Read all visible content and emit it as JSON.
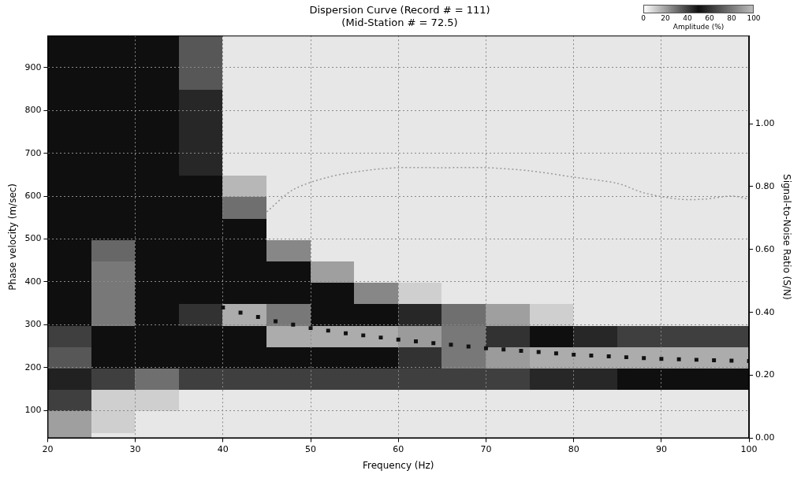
{
  "chart_data": {
    "type": "heatmap",
    "title": [
      "Dispersion Curve (Record # = 111)",
      "(Mid-Station # = 72.5)"
    ],
    "x_label": "Frequency (Hz)",
    "y_label": "Phase velocity (m/sec)",
    "y2_label": "Signal-to-Noise Ratio (S/N)",
    "xlim": [
      20,
      100
    ],
    "xticks": [
      20,
      30,
      40,
      50,
      60,
      70,
      80,
      90,
      100
    ],
    "ylim": [
      35,
      975
    ],
    "yticks": [
      100,
      200,
      300,
      400,
      500,
      600,
      700,
      800,
      900
    ],
    "y2lim": [
      0,
      1.28
    ],
    "y2ticks": [
      {
        "value": 0,
        "label": "0.00"
      },
      {
        "value": 0.2,
        "label": "0.20"
      },
      {
        "value": 0.4,
        "label": "0.40"
      },
      {
        "value": 0.6,
        "label": "0.60"
      },
      {
        "value": 0.8,
        "label": "0.80"
      },
      {
        "value": 1,
        "label": "1.00"
      }
    ],
    "grid": true,
    "heatmap": {
      "x_bins": [
        20,
        25,
        30,
        35,
        40,
        45,
        50,
        55,
        60,
        65,
        70,
        75,
        80,
        85,
        90,
        95,
        100
      ],
      "y_bins": [
        0,
        50,
        100,
        150,
        200,
        250,
        300,
        350,
        400,
        450,
        500,
        550,
        600,
        650,
        700,
        750,
        800,
        850,
        900,
        950,
        1000
      ],
      "cells": [
        [
          20,
          5,
          5,
          5,
          5,
          5,
          5,
          5,
          5,
          5,
          5,
          5,
          5,
          5,
          5,
          5
        ],
        [
          20,
          10,
          5,
          5,
          5,
          5,
          5,
          5,
          5,
          5,
          5,
          5,
          5,
          5,
          5,
          5
        ],
        [
          40,
          10,
          10,
          5,
          5,
          5,
          5,
          5,
          5,
          5,
          5,
          5,
          5,
          5,
          5,
          5
        ],
        [
          55,
          40,
          30,
          40,
          40,
          40,
          40,
          40,
          40,
          40,
          40,
          45,
          45,
          50,
          50,
          50
        ],
        [
          35,
          50,
          50,
          50,
          50,
          50,
          50,
          50,
          60,
          80,
          90,
          95,
          95,
          95,
          95,
          95
        ],
        [
          40,
          50,
          50,
          50,
          50,
          95,
          95,
          95,
          90,
          80,
          60,
          50,
          45,
          40,
          40,
          40
        ],
        [
          50,
          80,
          50,
          60,
          95,
          80,
          50,
          50,
          45,
          30,
          20,
          10,
          5,
          5,
          5,
          5
        ],
        [
          50,
          80,
          50,
          50,
          50,
          50,
          50,
          25,
          10,
          5,
          5,
          5,
          5,
          5,
          5,
          5
        ],
        [
          50,
          80,
          50,
          50,
          50,
          50,
          20,
          5,
          5,
          5,
          5,
          5,
          5,
          5,
          5,
          5
        ],
        [
          50,
          75,
          50,
          50,
          50,
          25,
          5,
          5,
          5,
          5,
          5,
          5,
          5,
          5,
          5,
          5
        ],
        [
          50,
          50,
          50,
          50,
          50,
          5,
          5,
          5,
          5,
          5,
          5,
          5,
          5,
          5,
          5,
          5
        ],
        [
          50,
          50,
          50,
          50,
          30,
          5,
          5,
          5,
          5,
          5,
          5,
          5,
          5,
          5,
          5,
          5
        ],
        [
          50,
          50,
          50,
          50,
          15,
          5,
          5,
          5,
          5,
          5,
          5,
          5,
          5,
          5,
          5,
          5
        ],
        [
          50,
          50,
          50,
          45,
          5,
          5,
          5,
          5,
          5,
          5,
          5,
          5,
          5,
          5,
          5,
          5
        ],
        [
          50,
          50,
          50,
          45,
          5,
          5,
          5,
          5,
          5,
          5,
          5,
          5,
          5,
          5,
          5,
          5
        ],
        [
          50,
          50,
          50,
          45,
          5,
          5,
          5,
          5,
          5,
          5,
          5,
          5,
          5,
          5,
          5,
          5
        ],
        [
          50,
          50,
          50,
          45,
          5,
          5,
          5,
          5,
          5,
          5,
          5,
          5,
          5,
          5,
          5,
          5
        ],
        [
          50,
          50,
          50,
          35,
          5,
          5,
          5,
          5,
          5,
          5,
          5,
          5,
          5,
          5,
          5,
          5
        ],
        [
          50,
          50,
          50,
          35,
          5,
          5,
          5,
          5,
          5,
          5,
          5,
          5,
          5,
          5,
          5,
          5
        ],
        [
          50,
          50,
          50,
          35,
          5,
          5,
          5,
          5,
          5,
          5,
          5,
          5,
          5,
          5,
          5,
          5
        ]
      ],
      "colorbar": {
        "label": "Amplitude (%)",
        "lim": [
          0,
          100
        ],
        "ticks": [
          0,
          20,
          40,
          60,
          80,
          100
        ]
      }
    },
    "series": [
      {
        "type": "scatter",
        "marker": "square",
        "color": "#111111",
        "x": [
          40,
          42,
          44,
          46,
          48,
          50,
          52,
          54,
          56,
          58,
          60,
          62,
          64,
          66,
          68,
          70,
          72,
          74,
          76,
          78,
          80,
          82,
          84,
          86,
          88,
          90,
          92,
          94,
          96,
          98,
          100
        ],
        "values": [
          340,
          328,
          318,
          308,
          300,
          292,
          286,
          280,
          275,
          270,
          265,
          261,
          257,
          253,
          249,
          245,
          242,
          239,
          236,
          233,
          230,
          228,
          226,
          224,
          222,
          220,
          219,
          218,
          217,
          216,
          215
        ]
      },
      {
        "type": "line",
        "line_style": "dotted",
        "color": "#9a9a9a",
        "axis": "y2",
        "x": [
          45,
          48,
          52,
          56,
          60,
          65,
          70,
          75,
          80,
          85,
          88,
          92,
          95,
          98,
          100
        ],
        "values": [
          0.72,
          0.79,
          0.83,
          0.85,
          0.86,
          0.86,
          0.86,
          0.85,
          0.83,
          0.81,
          0.78,
          0.76,
          0.76,
          0.77,
          0.76
        ]
      }
    ]
  }
}
